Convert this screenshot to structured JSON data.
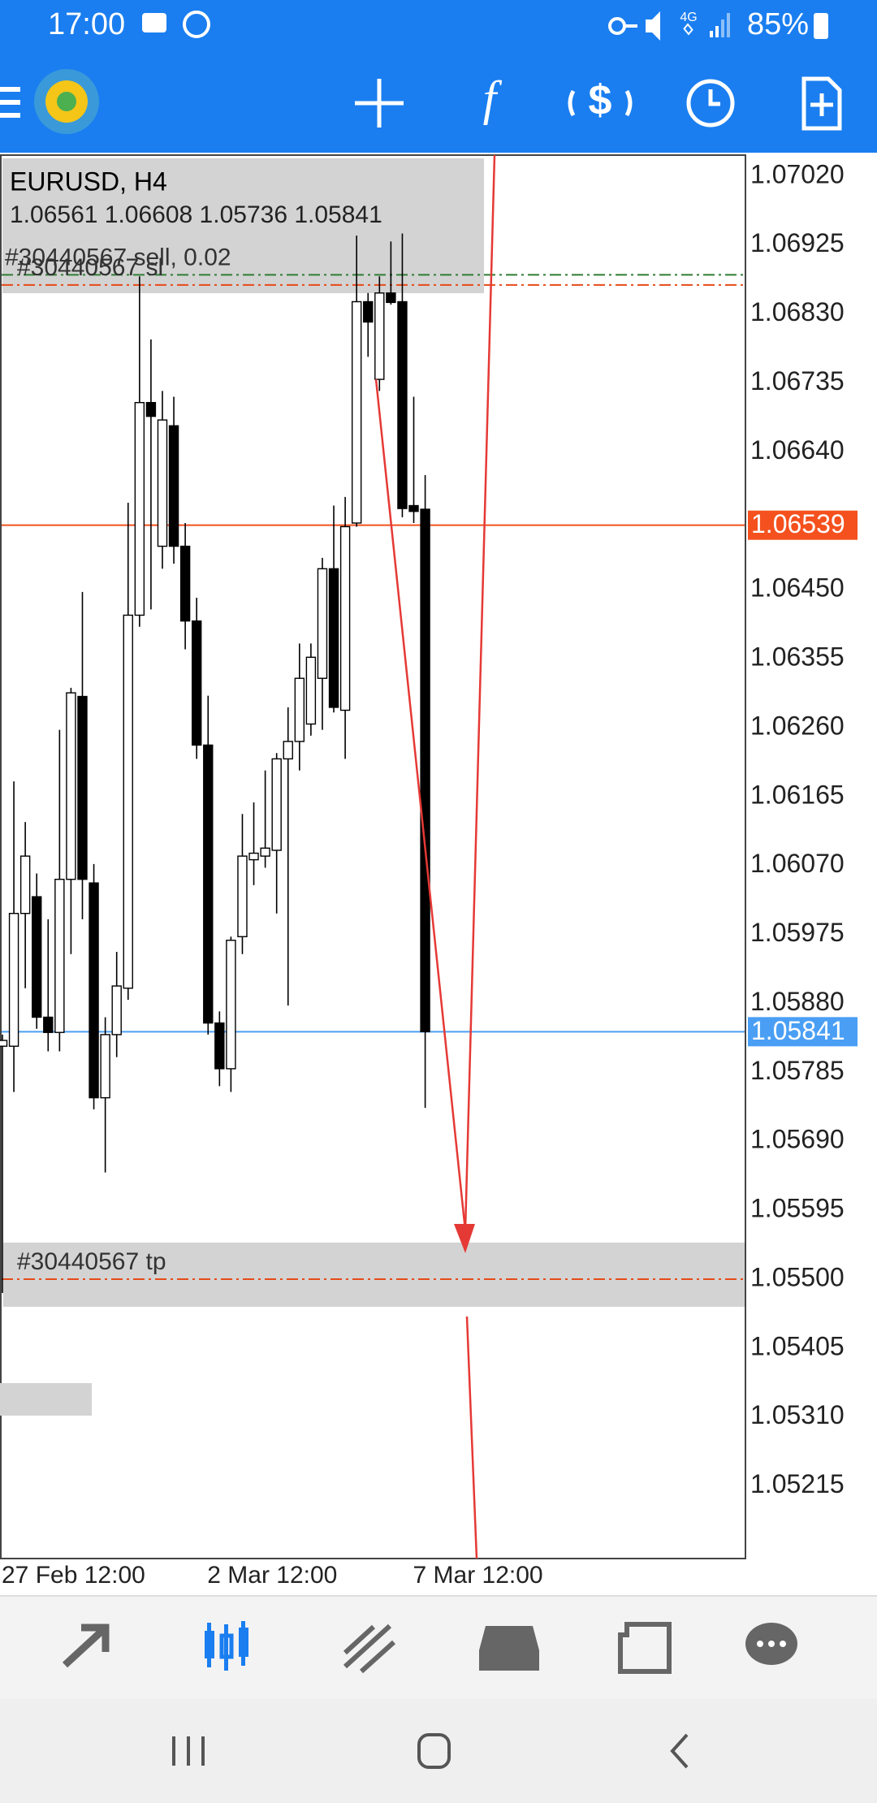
{
  "status_bar": {
    "time": "17:00",
    "network": "4G",
    "battery": "85%"
  },
  "chart_data": {
    "type": "candlestick",
    "symbol_title": "EURUSD, H4",
    "ohlc_text": "1.06561 1.06608 1.05736 1.05841",
    "categories": [
      "27 Feb 12:00",
      null,
      null,
      null,
      null,
      null,
      null,
      null,
      null,
      null,
      null,
      null,
      null,
      null,
      null,
      null,
      null,
      null,
      "2 Mar 12:00",
      null,
      null,
      null,
      null,
      null,
      null,
      null,
      null,
      null,
      null,
      null,
      null,
      null,
      null,
      null,
      null,
      null,
      "7 Mar 12:00",
      null
    ],
    "open": [
      1.05821,
      1.05821,
      1.06004,
      1.06027,
      1.05861,
      1.0584,
      1.06051,
      1.06303,
      1.06046,
      1.0575,
      1.05837,
      1.05901,
      1.06415,
      1.06708,
      1.0651,
      1.06676,
      1.0651,
      1.06407,
      1.06236,
      1.05853,
      1.0579,
      1.05972,
      1.06078,
      1.06083,
      1.06091,
      1.06217,
      1.06241,
      1.06265,
      1.06328,
      1.06479,
      1.06284,
      1.06542,
      1.06847,
      1.0674,
      1.06859,
      1.06847,
      1.06566,
      1.06561
    ],
    "high": [
      1.05837,
      1.06186,
      1.0613,
      1.06059,
      1.05996,
      1.06257,
      1.06315,
      1.06447,
      1.06072,
      1.05861,
      1.05951,
      1.0657,
      1.06882,
      1.06795,
      1.06724,
      1.06716,
      1.06542,
      1.06439,
      1.06304,
      1.05869,
      1.05972,
      1.06141,
      1.06157,
      1.06201,
      1.06225,
      1.06288,
      1.06376,
      1.06376,
      1.06494,
      1.06566,
      1.06578,
      1.06938,
      1.06859,
      1.06882,
      1.0693,
      1.06941,
      1.06716,
      1.06608
    ],
    "low": [
      1.05481,
      1.05758,
      1.05901,
      1.05845,
      1.05814,
      1.05814,
      1.05948,
      1.05996,
      1.05734,
      1.05647,
      1.05806,
      1.05885,
      1.06399,
      1.06423,
      1.06479,
      1.06486,
      1.06368,
      1.06217,
      1.05837,
      1.05766,
      1.05758,
      1.05948,
      1.06043,
      1.06067,
      1.06004,
      1.05877,
      1.06201,
      1.06249,
      1.06257,
      1.06281,
      1.06217,
      1.06537,
      1.06771,
      1.06724,
      1.06843,
      1.0655,
      1.06542,
      1.05736
    ],
    "close": [
      1.05829,
      1.06004,
      1.06083,
      1.05861,
      1.0584,
      1.06051,
      1.06308,
      1.06051,
      1.0575,
      1.05837,
      1.05904,
      1.06415,
      1.06708,
      1.06689,
      1.06684,
      1.0651,
      1.06407,
      1.06236,
      1.05853,
      1.0579,
      1.05967,
      1.06083,
      1.06087,
      1.06094,
      1.06217,
      1.06241,
      1.06328,
      1.06357,
      1.06479,
      1.06288,
      1.06537,
      1.06847,
      1.06819,
      1.06859,
      1.06846,
      1.06562,
      1.06558,
      1.05841
    ],
    "bull_color": "#ffffff",
    "bear_color": "#000000",
    "ylim": [
      1.05115,
      1.07049
    ],
    "yticks": [
      {
        "value": 1.0702,
        "label": "1.07020"
      },
      1.06925,
      {
        "value": 1.0683,
        "label": "1.06830"
      },
      1.06735,
      {
        "value": 1.0664,
        "label": "1.06640"
      },
      {
        "value": 1.0645,
        "label": "1.06450"
      },
      1.06355,
      {
        "value": 1.0626,
        "label": "1.06260"
      },
      1.06165,
      {
        "value": 1.0607,
        "label": "1.06070"
      },
      1.05975,
      {
        "value": 1.0588,
        "label": "1.05880"
      },
      1.05785,
      {
        "value": 1.0569,
        "label": "1.05690"
      },
      1.05595,
      {
        "value": 1.055,
        "label": "1.05500"
      },
      1.05405,
      {
        "value": 1.0531,
        "label": "1.05310"
      },
      1.05215
    ],
    "price_lines": [
      {
        "value": 1.06539,
        "color": "#f4511e"
      },
      {
        "value": 1.05841,
        "color": "#4a9ff5"
      }
    ],
    "order_lines": [
      {
        "label": "#30440567 sell, 0.02",
        "value": 1.06884,
        "color": "#2e7d32"
      },
      {
        "label": "#30440567 sl",
        "value": 1.0687,
        "color": "#e64a19"
      },
      {
        "label": "#30440567 tp",
        "value": 1.055,
        "color": "#e64a19"
      }
    ]
  }
}
